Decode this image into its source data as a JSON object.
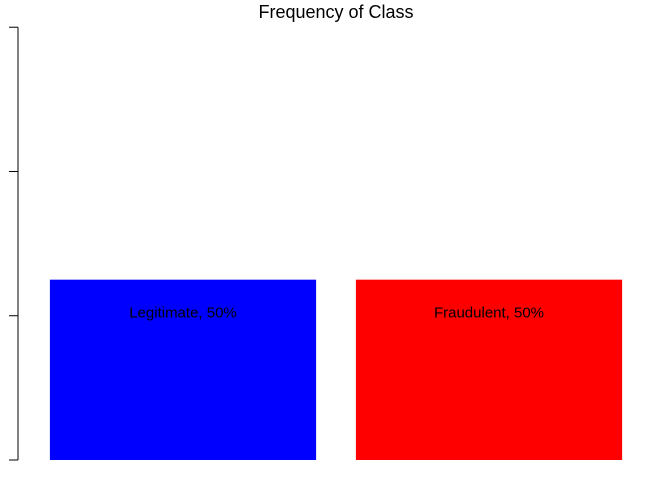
{
  "chart_data": {
    "type": "bar",
    "title": "Frequency of Class",
    "xlabel": "",
    "ylabel": "",
    "categories": [
      "Legitimate",
      "Fraudulent"
    ],
    "values": [
      50,
      50
    ],
    "data_labels": [
      "Legitimate, 50%",
      "Fraudulent, 50%"
    ],
    "colors": [
      "#0000ff",
      "#ff0000"
    ],
    "ylim": [
      0,
      122
    ],
    "y_ticks": [
      0,
      40,
      80,
      120
    ],
    "y_tick_labels_shown": false,
    "grid": false,
    "legend": "none"
  }
}
